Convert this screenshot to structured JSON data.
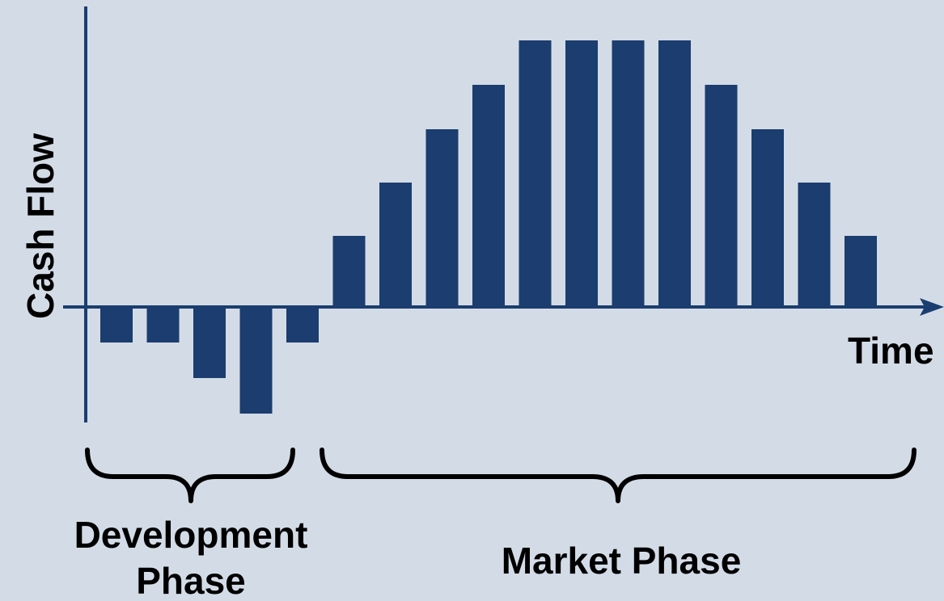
{
  "colors": {
    "background": "#d3dce6",
    "bar": "#1b3d6f",
    "axis": "#1b3d6f",
    "brace": "#000000",
    "text": "#000000"
  },
  "chart_data": {
    "type": "bar",
    "ylabel": "Cash Flow",
    "xlabel": "Time",
    "values": [
      -1,
      -1,
      -2,
      -3,
      -1,
      2,
      3.5,
      5,
      6.25,
      7.5,
      7.5,
      7.5,
      7.5,
      6.25,
      5,
      3.5,
      2
    ],
    "phases": [
      {
        "name": "Development Phase",
        "lines": [
          "Development",
          "Phase"
        ],
        "count": 5
      },
      {
        "name": "Market Phase",
        "lines": [
          "Market Phase"
        ],
        "count": 12
      }
    ],
    "grid": false,
    "legend": "none"
  }
}
